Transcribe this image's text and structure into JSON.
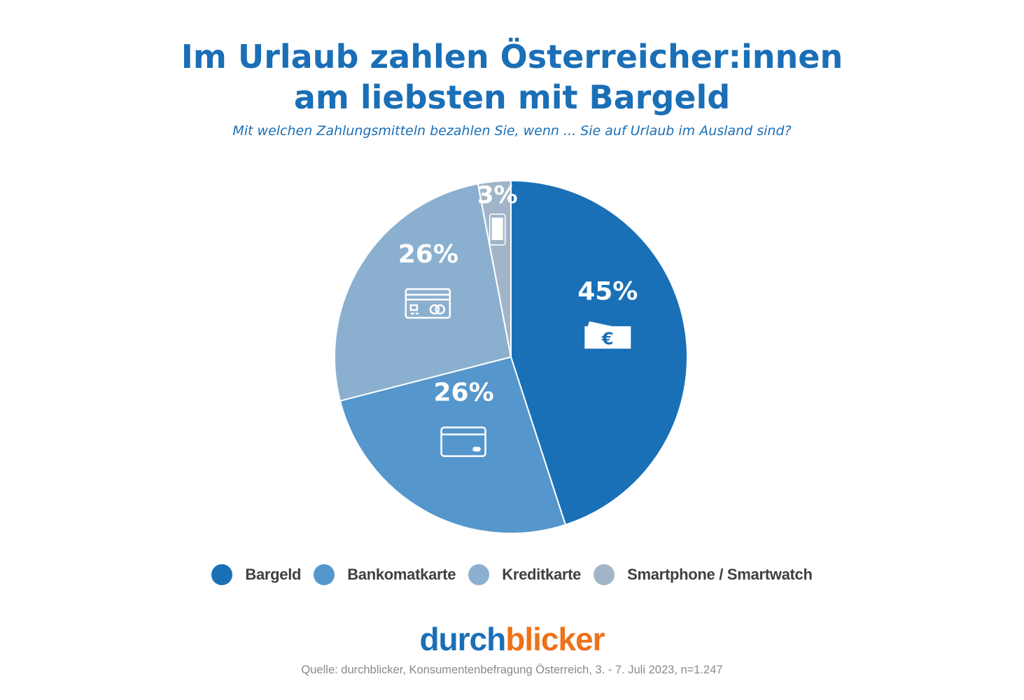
{
  "title_line1": "Im Urlaub zahlen Österreicher:innen",
  "title_line2": "am liebsten mit Bargeld",
  "subtitle": "Mit welchen Zahlungsmitteln bezahlen Sie, wenn ... Sie auf Urlaub im Ausland sind?",
  "chart_data": {
    "type": "pie",
    "title": "Im Urlaub zahlen Österreicher:innen am liebsten mit Bargeld",
    "subtitle": "Mit welchen Zahlungsmitteln bezahlen Sie, wenn ... Sie auf Urlaub im Ausland sind?",
    "categories": [
      "Bargeld",
      "Bankomatkarte",
      "Kreditkarte",
      "Smartphone / Smartwatch"
    ],
    "values": [
      45,
      26,
      26,
      3
    ],
    "labels": [
      "45%",
      "26%",
      "26%",
      "3%"
    ],
    "icons": [
      "banknote-euro-icon",
      "debit-card-icon",
      "credit-card-icon",
      "smartphone-icon"
    ],
    "colors": [
      "#1a70b7",
      "#5597cc",
      "#8bb0cf",
      "#a2b5c8"
    ],
    "start": "top",
    "direction": "clockwise",
    "legend_position": "bottom"
  },
  "logo": {
    "part1": "durch",
    "part2": "blicker"
  },
  "source": "Quelle: durchblicker, Konsumentenbefragung Österreich,  3. - 7. Juli 2023, n=1.247"
}
